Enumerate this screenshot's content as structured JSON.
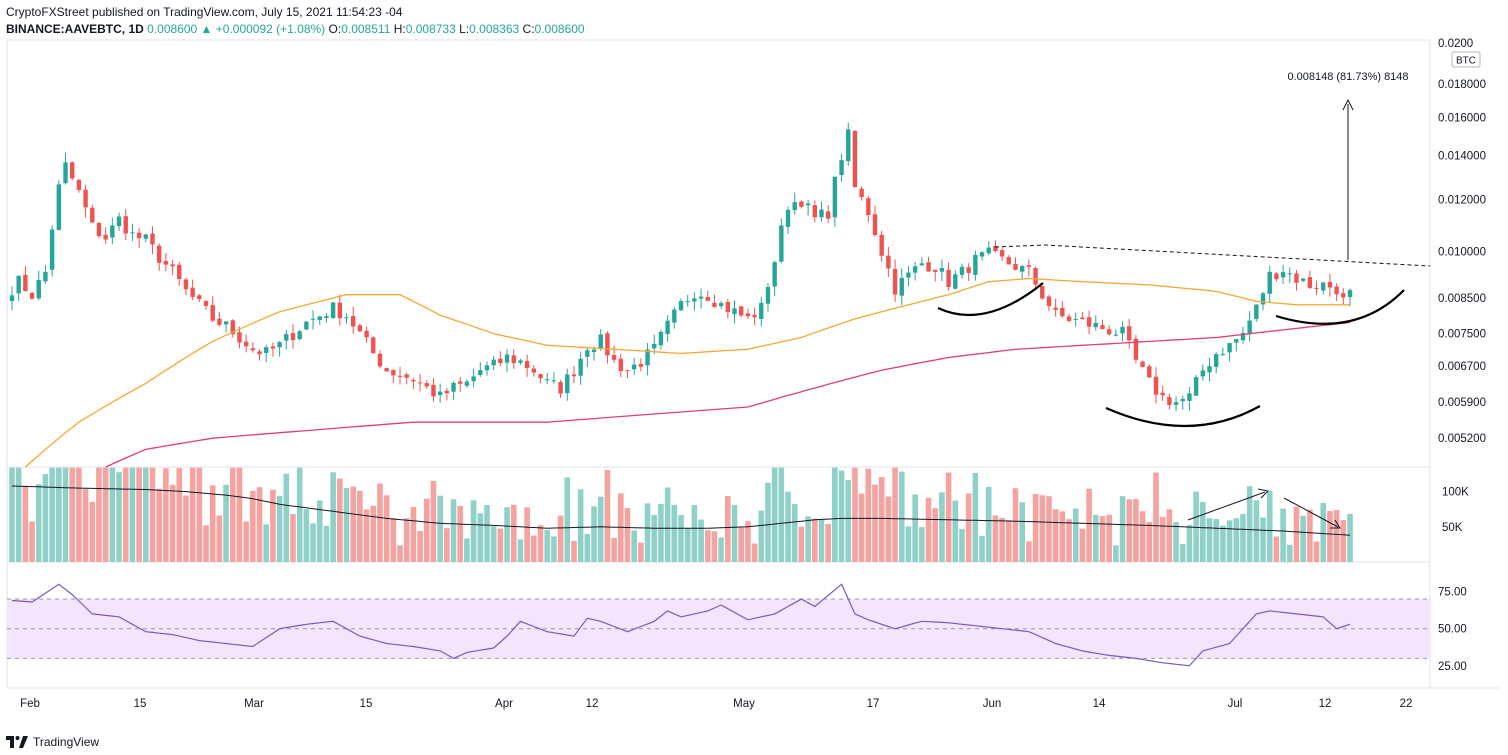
{
  "header": {
    "publisher_line": "CryptoFXStreet published on TradingView.com, July 15, 2021 11:54:23 -04",
    "symbol": "BINANCE:AAVEBTC, 1D",
    "last": "0.008600",
    "change": "▲ +0.000092 (+1.08%)",
    "open_label": "O:",
    "open": "0.008511",
    "high_label": "H:",
    "high": "0.008733",
    "low_label": "L:",
    "low": "0.008363",
    "close_label": "C:",
    "close": "0.008600"
  },
  "footer": {
    "brand": "TradingView",
    "logo_icon": "tradingview-logo-icon"
  },
  "colors": {
    "up": "#26a69a",
    "down": "#ef5350",
    "ma50": "#f7a734",
    "ma200": "#e23f6f",
    "rsi": "#7e57c2",
    "rsi_band": "#f3e5fb"
  },
  "chart_data": {
    "type": "candlestick",
    "price_axis": {
      "currency": "BTC",
      "scale": "log",
      "ticks": [
        "0.005200",
        "0.005900",
        "0.006700",
        "0.007500",
        "0.008500",
        "0.010000",
        "0.012000",
        "0.014000",
        "0.016000",
        "0.018000"
      ],
      "top_partial": "0.0200",
      "range": [
        0.0047,
        0.021
      ]
    },
    "time_axis": {
      "ticks": [
        "Feb",
        "15",
        "Mar",
        "15",
        "Apr",
        "12",
        "May",
        "17",
        "Jun",
        "14",
        "Jul",
        "12",
        "22"
      ]
    },
    "annotation": "0.008148 (81.73%) 8148",
    "volume_axis": {
      "ticks": [
        "50K",
        "100K"
      ]
    },
    "rsi_axis": {
      "ticks": [
        "25.00",
        "50.00",
        "75.00"
      ],
      "band": [
        30,
        70
      ]
    },
    "price_anchors": [
      [
        0,
        0.0088
      ],
      [
        1,
        0.009
      ],
      [
        3,
        0.0086
      ],
      [
        5,
        0.0093
      ],
      [
        7,
        0.0125
      ],
      [
        8,
        0.0135
      ],
      [
        10,
        0.0123
      ],
      [
        12,
        0.0109
      ],
      [
        14,
        0.0105
      ],
      [
        16,
        0.0112
      ],
      [
        18,
        0.0106
      ],
      [
        20,
        0.0104
      ],
      [
        22,
        0.0098
      ],
      [
        24,
        0.0093
      ],
      [
        26,
        0.0087
      ],
      [
        28,
        0.0083
      ],
      [
        30,
        0.0079
      ],
      [
        32,
        0.0077
      ],
      [
        34,
        0.0074
      ],
      [
        36,
        0.0071
      ],
      [
        38,
        0.007
      ],
      [
        40,
        0.0072
      ],
      [
        42,
        0.0075
      ],
      [
        44,
        0.0078
      ],
      [
        46,
        0.008
      ],
      [
        48,
        0.0082
      ],
      [
        50,
        0.008
      ],
      [
        52,
        0.0075
      ],
      [
        54,
        0.007
      ],
      [
        56,
        0.0066
      ],
      [
        58,
        0.0065
      ],
      [
        60,
        0.0064
      ],
      [
        62,
        0.0062
      ],
      [
        64,
        0.006
      ],
      [
        66,
        0.0062
      ],
      [
        68,
        0.0063
      ],
      [
        70,
        0.0066
      ],
      [
        72,
        0.0067
      ],
      [
        74,
        0.0069
      ],
      [
        76,
        0.0068
      ],
      [
        78,
        0.0066
      ],
      [
        80,
        0.0063
      ],
      [
        82,
        0.0062
      ],
      [
        84,
        0.0066
      ],
      [
        86,
        0.0072
      ],
      [
        88,
        0.0073
      ],
      [
        90,
        0.0068
      ],
      [
        92,
        0.0066
      ],
      [
        94,
        0.0068
      ],
      [
        96,
        0.0071
      ],
      [
        98,
        0.0077
      ],
      [
        100,
        0.0083
      ],
      [
        102,
        0.0087
      ],
      [
        104,
        0.0086
      ],
      [
        106,
        0.0083
      ],
      [
        108,
        0.0081
      ],
      [
        110,
        0.0079
      ],
      [
        112,
        0.0082
      ],
      [
        114,
        0.0097
      ],
      [
        116,
        0.0118
      ],
      [
        118,
        0.012
      ],
      [
        120,
        0.0112
      ],
      [
        122,
        0.0115
      ],
      [
        124,
        0.014
      ],
      [
        125,
        0.015
      ],
      [
        126,
        0.0125
      ],
      [
        128,
        0.0115
      ],
      [
        130,
        0.01
      ],
      [
        132,
        0.0088
      ],
      [
        134,
        0.0092
      ],
      [
        136,
        0.0096
      ],
      [
        138,
        0.0095
      ],
      [
        140,
        0.009
      ],
      [
        142,
        0.0093
      ],
      [
        144,
        0.0097
      ],
      [
        146,
        0.0099
      ],
      [
        148,
        0.0097
      ],
      [
        150,
        0.0095
      ],
      [
        152,
        0.0093
      ],
      [
        154,
        0.0086
      ],
      [
        156,
        0.008
      ],
      [
        158,
        0.0079
      ],
      [
        160,
        0.0078
      ],
      [
        162,
        0.0077
      ],
      [
        164,
        0.0076
      ],
      [
        166,
        0.0075
      ],
      [
        168,
        0.0068
      ],
      [
        170,
        0.0063
      ],
      [
        172,
        0.006
      ],
      [
        174,
        0.0059
      ],
      [
        176,
        0.006
      ],
      [
        178,
        0.0066
      ],
      [
        180,
        0.007
      ],
      [
        182,
        0.0072
      ],
      [
        184,
        0.0075
      ],
      [
        186,
        0.0082
      ],
      [
        188,
        0.0092
      ],
      [
        190,
        0.0094
      ],
      [
        192,
        0.0091
      ],
      [
        194,
        0.0089
      ],
      [
        196,
        0.0089
      ],
      [
        198,
        0.0088
      ],
      [
        199,
        0.0084
      ],
      [
        200,
        0.0086
      ]
    ],
    "ma50_anchors": [
      [
        2,
        0.0047
      ],
      [
        10,
        0.0055
      ],
      [
        20,
        0.0063
      ],
      [
        30,
        0.0073
      ],
      [
        40,
        0.0081
      ],
      [
        50,
        0.0086
      ],
      [
        58,
        0.0086
      ],
      [
        64,
        0.008
      ],
      [
        72,
        0.0075
      ],
      [
        80,
        0.0072
      ],
      [
        90,
        0.0071
      ],
      [
        100,
        0.007
      ],
      [
        110,
        0.0071
      ],
      [
        118,
        0.0074
      ],
      [
        126,
        0.0079
      ],
      [
        134,
        0.0083
      ],
      [
        140,
        0.0086
      ],
      [
        146,
        0.009
      ],
      [
        152,
        0.0091
      ],
      [
        160,
        0.009
      ],
      [
        170,
        0.0089
      ],
      [
        180,
        0.0087
      ],
      [
        186,
        0.0084
      ],
      [
        192,
        0.0083
      ],
      [
        200,
        0.0083
      ]
    ],
    "ma200_anchors": [
      [
        14,
        0.0047
      ],
      [
        20,
        0.005
      ],
      [
        30,
        0.0052
      ],
      [
        40,
        0.0053
      ],
      [
        50,
        0.0054
      ],
      [
        60,
        0.0055
      ],
      [
        70,
        0.0055
      ],
      [
        80,
        0.0055
      ],
      [
        90,
        0.0056
      ],
      [
        100,
        0.0057
      ],
      [
        110,
        0.0058
      ],
      [
        120,
        0.0062
      ],
      [
        130,
        0.0066
      ],
      [
        140,
        0.0069
      ],
      [
        150,
        0.0071
      ],
      [
        160,
        0.0072
      ],
      [
        170,
        0.0073
      ],
      [
        180,
        0.0074
      ],
      [
        190,
        0.0076
      ],
      [
        200,
        0.0078
      ]
    ],
    "rsi_anchors": [
      [
        0,
        69
      ],
      [
        3,
        68
      ],
      [
        7,
        80
      ],
      [
        9,
        73
      ],
      [
        12,
        60
      ],
      [
        16,
        58
      ],
      [
        20,
        48
      ],
      [
        24,
        46
      ],
      [
        28,
        42
      ],
      [
        32,
        40
      ],
      [
        36,
        38
      ],
      [
        40,
        50
      ],
      [
        44,
        53
      ],
      [
        48,
        55
      ],
      [
        52,
        45
      ],
      [
        56,
        40
      ],
      [
        60,
        38
      ],
      [
        64,
        35
      ],
      [
        66,
        30
      ],
      [
        68,
        34
      ],
      [
        72,
        37
      ],
      [
        74,
        45
      ],
      [
        76,
        55
      ],
      [
        80,
        48
      ],
      [
        84,
        45
      ],
      [
        86,
        57
      ],
      [
        88,
        55
      ],
      [
        92,
        48
      ],
      [
        96,
        55
      ],
      [
        98,
        62
      ],
      [
        100,
        58
      ],
      [
        104,
        62
      ],
      [
        106,
        66
      ],
      [
        110,
        56
      ],
      [
        114,
        60
      ],
      [
        118,
        70
      ],
      [
        120,
        65
      ],
      [
        124,
        80
      ],
      [
        126,
        60
      ],
      [
        128,
        56
      ],
      [
        132,
        50
      ],
      [
        136,
        55
      ],
      [
        140,
        54
      ],
      [
        144,
        52
      ],
      [
        148,
        50
      ],
      [
        152,
        48
      ],
      [
        156,
        40
      ],
      [
        160,
        35
      ],
      [
        164,
        32
      ],
      [
        168,
        30
      ],
      [
        172,
        27
      ],
      [
        176,
        25
      ],
      [
        178,
        35
      ],
      [
        182,
        40
      ],
      [
        184,
        50
      ],
      [
        186,
        60
      ],
      [
        188,
        62
      ],
      [
        192,
        60
      ],
      [
        196,
        58
      ],
      [
        198,
        50
      ],
      [
        200,
        53
      ]
    ],
    "volume_avg_anchors": [
      [
        0,
        108
      ],
      [
        10,
        105
      ],
      [
        20,
        103
      ],
      [
        26,
        100
      ],
      [
        32,
        95
      ],
      [
        36,
        90
      ],
      [
        40,
        82
      ],
      [
        48,
        72
      ],
      [
        56,
        62
      ],
      [
        64,
        55
      ],
      [
        72,
        52
      ],
      [
        80,
        48
      ],
      [
        88,
        50
      ],
      [
        96,
        48
      ],
      [
        104,
        48
      ],
      [
        110,
        50
      ],
      [
        116,
        56
      ],
      [
        120,
        60
      ],
      [
        124,
        62
      ],
      [
        130,
        62
      ],
      [
        140,
        60
      ],
      [
        150,
        58
      ],
      [
        160,
        55
      ],
      [
        170,
        52
      ],
      [
        180,
        48
      ],
      [
        190,
        44
      ],
      [
        200,
        38
      ]
    ]
  }
}
